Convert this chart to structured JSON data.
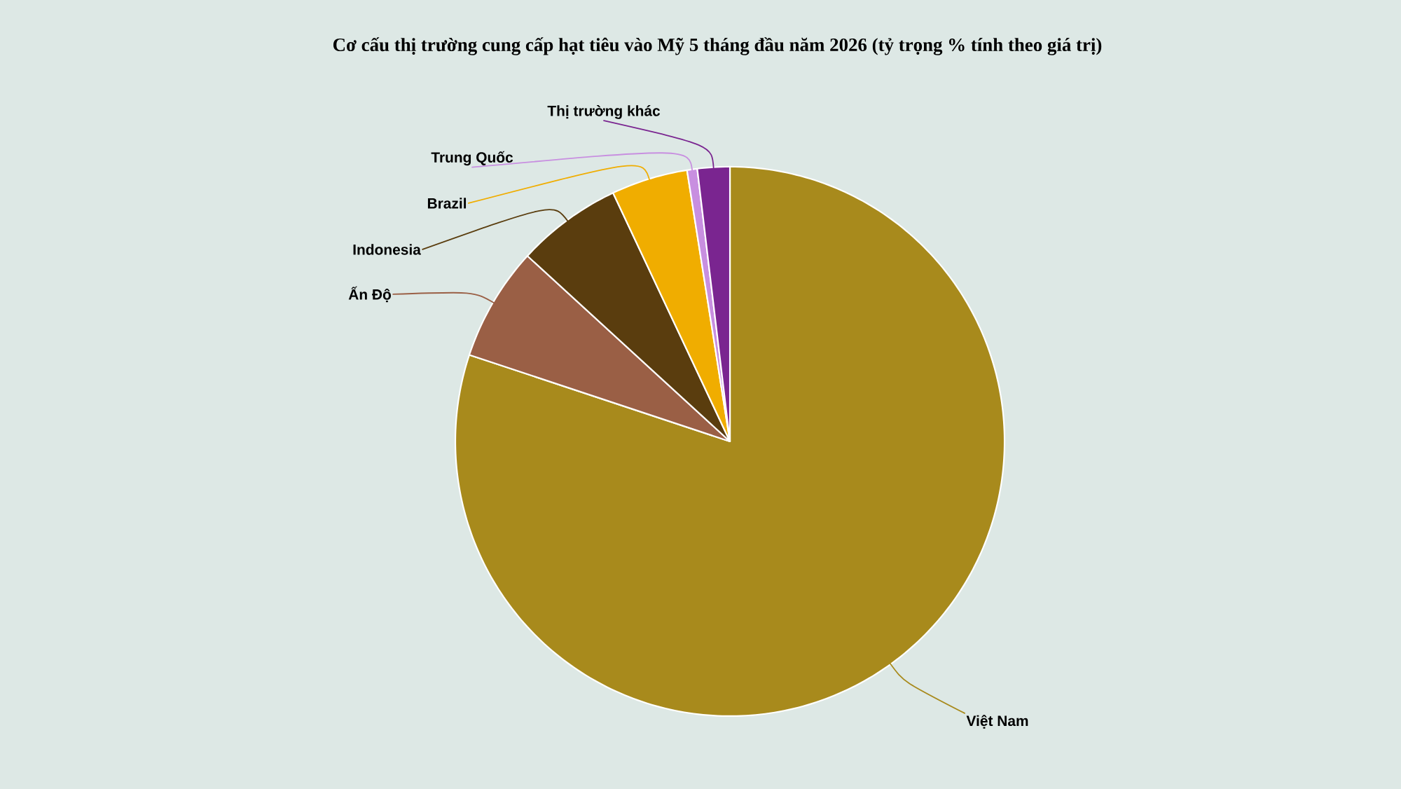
{
  "chart_data": {
    "type": "pie",
    "title": "Cơ cấu thị trường cung cấp hạt tiêu vào Mỹ 5 tháng đầu năm 2026 (tỷ trọng % tính theo giá trị)",
    "categories": [
      "Việt Nam",
      "Ấn Độ",
      "Indonesia",
      "Brazil",
      "Trung Quốc",
      "Thị trường khác"
    ],
    "values": [
      80.1,
      6.7,
      6.2,
      4.5,
      0.6,
      1.9
    ],
    "colors": [
      "#a88a1c",
      "#9a5f45",
      "#5a3d0e",
      "#f0ad00",
      "#c88fe0",
      "#7a2590"
    ]
  }
}
